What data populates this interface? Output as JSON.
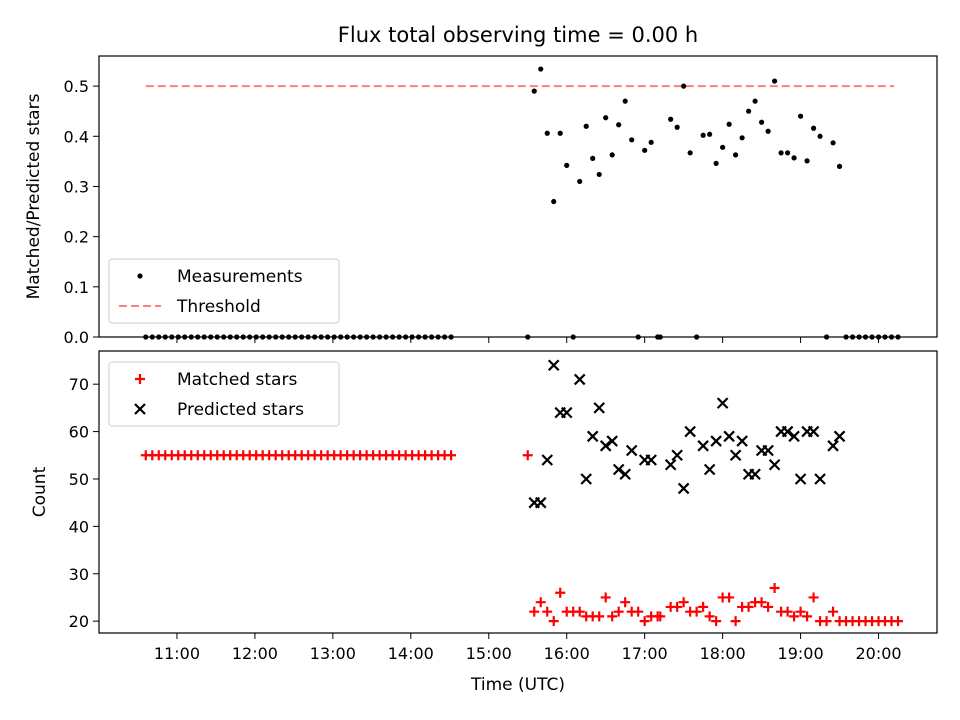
{
  "title": "Flux total observing time = 0.00 h",
  "xlabel": "Time (UTC)",
  "colors": {
    "measurement": "#000000",
    "threshold": "#ff7f7f",
    "matched": "#ff0000",
    "predicted": "#000000"
  },
  "chart_data": [
    {
      "type": "scatter",
      "ylabel": "Matched/Predicted stars",
      "ylim": [
        0,
        0.56
      ],
      "yticks": [
        "0.0",
        "0.1",
        "0.2",
        "0.3",
        "0.4",
        "0.5"
      ],
      "legend": {
        "position": "lower-left",
        "entries": [
          "Measurements",
          "Threshold"
        ]
      },
      "threshold": {
        "name": "Threshold",
        "value": 0.5,
        "x_start": "10:36",
        "x_end": "20:12"
      },
      "series": [
        {
          "name": "Measurements",
          "marker": "dot",
          "points": [
            [
              "10:36",
              0
            ],
            [
              "10:41",
              0
            ],
            [
              "10:46",
              0
            ],
            [
              "10:51",
              0
            ],
            [
              "10:56",
              0
            ],
            [
              "11:01",
              0
            ],
            [
              "11:06",
              0
            ],
            [
              "11:11",
              0
            ],
            [
              "11:16",
              0
            ],
            [
              "11:21",
              0
            ],
            [
              "11:26",
              0
            ],
            [
              "11:31",
              0
            ],
            [
              "11:36",
              0
            ],
            [
              "11:41",
              0
            ],
            [
              "11:46",
              0
            ],
            [
              "11:51",
              0
            ],
            [
              "11:56",
              0
            ],
            [
              "12:01",
              0
            ],
            [
              "12:06",
              0
            ],
            [
              "12:11",
              0
            ],
            [
              "12:16",
              0
            ],
            [
              "12:21",
              0
            ],
            [
              "12:26",
              0
            ],
            [
              "12:31",
              0
            ],
            [
              "12:36",
              0
            ],
            [
              "12:41",
              0
            ],
            [
              "12:46",
              0
            ],
            [
              "12:51",
              0
            ],
            [
              "12:56",
              0
            ],
            [
              "13:01",
              0
            ],
            [
              "13:06",
              0
            ],
            [
              "13:11",
              0
            ],
            [
              "13:16",
              0
            ],
            [
              "13:21",
              0
            ],
            [
              "13:26",
              0
            ],
            [
              "13:31",
              0
            ],
            [
              "13:36",
              0
            ],
            [
              "13:41",
              0
            ],
            [
              "13:46",
              0
            ],
            [
              "13:51",
              0
            ],
            [
              "13:56",
              0
            ],
            [
              "14:01",
              0
            ],
            [
              "14:06",
              0
            ],
            [
              "14:11",
              0
            ],
            [
              "14:16",
              0
            ],
            [
              "14:21",
              0
            ],
            [
              "14:26",
              0
            ],
            [
              "14:31",
              0
            ],
            [
              "15:30",
              0
            ],
            [
              "15:35",
              0.49
            ],
            [
              "15:40",
              0.534
            ],
            [
              "15:45",
              0.406
            ],
            [
              "15:50",
              0.27
            ],
            [
              "15:55",
              0.406
            ],
            [
              "16:00",
              0.342
            ],
            [
              "16:05",
              0
            ],
            [
              "16:10",
              0.31
            ],
            [
              "16:15",
              0.42
            ],
            [
              "16:20",
              0.356
            ],
            [
              "16:25",
              0.324
            ],
            [
              "16:30",
              0.437
            ],
            [
              "16:35",
              0.363
            ],
            [
              "16:40",
              0.423
            ],
            [
              "16:45",
              0.47
            ],
            [
              "16:50",
              0.393
            ],
            [
              "16:55",
              0
            ],
            [
              "17:00",
              0.372
            ],
            [
              "17:05",
              0.388
            ],
            [
              "17:10",
              0
            ],
            [
              "17:12",
              0
            ],
            [
              "17:20",
              0.434
            ],
            [
              "17:25",
              0.418
            ],
            [
              "17:30",
              0.5
            ],
            [
              "17:35",
              0.367
            ],
            [
              "17:40",
              0
            ],
            [
              "17:45",
              0.402
            ],
            [
              "17:50",
              0.404
            ],
            [
              "17:55",
              0.346
            ],
            [
              "18:00",
              0.378
            ],
            [
              "18:05",
              0.424
            ],
            [
              "18:10",
              0.363
            ],
            [
              "18:15",
              0.397
            ],
            [
              "18:20",
              0.45
            ],
            [
              "18:25",
              0.47
            ],
            [
              "18:30",
              0.428
            ],
            [
              "18:35",
              0.41
            ],
            [
              "18:40",
              0.51
            ],
            [
              "18:45",
              0.367
            ],
            [
              "18:50",
              0.367
            ],
            [
              "18:55",
              0.357
            ],
            [
              "19:00",
              0.44
            ],
            [
              "19:05",
              0.351
            ],
            [
              "19:10",
              0.416
            ],
            [
              "19:15",
              0.4
            ],
            [
              "19:20",
              0
            ],
            [
              "19:25",
              0.387
            ],
            [
              "19:30",
              0.34
            ],
            [
              "19:35",
              0
            ],
            [
              "19:40",
              0
            ],
            [
              "19:45",
              0
            ],
            [
              "19:50",
              0
            ],
            [
              "19:55",
              0
            ],
            [
              "20:00",
              0
            ],
            [
              "20:05",
              0
            ],
            [
              "20:10",
              0
            ],
            [
              "20:15",
              0
            ]
          ]
        }
      ]
    },
    {
      "type": "scatter",
      "ylabel": "Count",
      "ylim": [
        17.5,
        77
      ],
      "yticks": [
        "20",
        "30",
        "40",
        "50",
        "60",
        "70"
      ],
      "legend": {
        "position": "upper-left",
        "entries": [
          "Matched stars",
          "Predicted stars"
        ]
      },
      "series": [
        {
          "name": "Matched stars",
          "marker": "plus",
          "points": [
            [
              "10:36",
              55
            ],
            [
              "10:41",
              55
            ],
            [
              "10:46",
              55
            ],
            [
              "10:51",
              55
            ],
            [
              "10:56",
              55
            ],
            [
              "11:01",
              55
            ],
            [
              "11:06",
              55
            ],
            [
              "11:11",
              55
            ],
            [
              "11:16",
              55
            ],
            [
              "11:21",
              55
            ],
            [
              "11:26",
              55
            ],
            [
              "11:31",
              55
            ],
            [
              "11:36",
              55
            ],
            [
              "11:41",
              55
            ],
            [
              "11:46",
              55
            ],
            [
              "11:51",
              55
            ],
            [
              "11:56",
              55
            ],
            [
              "12:01",
              55
            ],
            [
              "12:06",
              55
            ],
            [
              "12:11",
              55
            ],
            [
              "12:16",
              55
            ],
            [
              "12:21",
              55
            ],
            [
              "12:26",
              55
            ],
            [
              "12:31",
              55
            ],
            [
              "12:36",
              55
            ],
            [
              "12:41",
              55
            ],
            [
              "12:46",
              55
            ],
            [
              "12:51",
              55
            ],
            [
              "12:56",
              55
            ],
            [
              "13:01",
              55
            ],
            [
              "13:06",
              55
            ],
            [
              "13:11",
              55
            ],
            [
              "13:16",
              55
            ],
            [
              "13:21",
              55
            ],
            [
              "13:26",
              55
            ],
            [
              "13:31",
              55
            ],
            [
              "13:36",
              55
            ],
            [
              "13:41",
              55
            ],
            [
              "13:46",
              55
            ],
            [
              "13:51",
              55
            ],
            [
              "13:56",
              55
            ],
            [
              "14:01",
              55
            ],
            [
              "14:06",
              55
            ],
            [
              "14:11",
              55
            ],
            [
              "14:16",
              55
            ],
            [
              "14:21",
              55
            ],
            [
              "14:26",
              55
            ],
            [
              "14:31",
              55
            ],
            [
              "15:30",
              55
            ],
            [
              "15:35",
              22
            ],
            [
              "15:40",
              24
            ],
            [
              "15:45",
              22
            ],
            [
              "15:50",
              20
            ],
            [
              "15:55",
              26
            ],
            [
              "16:00",
              22
            ],
            [
              "16:05",
              22
            ],
            [
              "16:10",
              22
            ],
            [
              "16:15",
              21
            ],
            [
              "16:20",
              21
            ],
            [
              "16:25",
              21
            ],
            [
              "16:30",
              25
            ],
            [
              "16:35",
              21
            ],
            [
              "16:40",
              22
            ],
            [
              "16:45",
              24
            ],
            [
              "16:50",
              22
            ],
            [
              "16:55",
              22
            ],
            [
              "17:00",
              20
            ],
            [
              "17:05",
              21
            ],
            [
              "17:10",
              21
            ],
            [
              "17:12",
              21
            ],
            [
              "17:20",
              23
            ],
            [
              "17:25",
              23
            ],
            [
              "17:30",
              24
            ],
            [
              "17:35",
              22
            ],
            [
              "17:40",
              22
            ],
            [
              "17:45",
              23
            ],
            [
              "17:50",
              21
            ],
            [
              "17:55",
              20
            ],
            [
              "18:00",
              25
            ],
            [
              "18:05",
              25
            ],
            [
              "18:10",
              20
            ],
            [
              "18:15",
              23
            ],
            [
              "18:20",
              23
            ],
            [
              "18:25",
              24
            ],
            [
              "18:30",
              24
            ],
            [
              "18:35",
              23
            ],
            [
              "18:40",
              27
            ],
            [
              "18:45",
              22
            ],
            [
              "18:50",
              22
            ],
            [
              "18:55",
              21
            ],
            [
              "19:00",
              22
            ],
            [
              "19:05",
              21
            ],
            [
              "19:10",
              25
            ],
            [
              "19:15",
              20
            ],
            [
              "19:20",
              20
            ],
            [
              "19:25",
              22
            ],
            [
              "19:30",
              20
            ],
            [
              "19:35",
              20
            ],
            [
              "19:40",
              20
            ],
            [
              "19:45",
              20
            ],
            [
              "19:50",
              20
            ],
            [
              "19:55",
              20
            ],
            [
              "20:00",
              20
            ],
            [
              "20:05",
              20
            ],
            [
              "20:10",
              20
            ],
            [
              "20:15",
              20
            ]
          ]
        },
        {
          "name": "Predicted stars",
          "marker": "x",
          "points": [
            [
              "15:35",
              45
            ],
            [
              "15:40",
              45
            ],
            [
              "15:45",
              54
            ],
            [
              "15:50",
              74
            ],
            [
              "15:55",
              64
            ],
            [
              "16:00",
              64
            ],
            [
              "16:10",
              71
            ],
            [
              "16:15",
              50
            ],
            [
              "16:20",
              59
            ],
            [
              "16:25",
              65
            ],
            [
              "16:30",
              57
            ],
            [
              "16:35",
              58
            ],
            [
              "16:40",
              52
            ],
            [
              "16:45",
              51
            ],
            [
              "16:50",
              56
            ],
            [
              "17:00",
              54
            ],
            [
              "17:05",
              54
            ],
            [
              "17:20",
              53
            ],
            [
              "17:25",
              55
            ],
            [
              "17:30",
              48
            ],
            [
              "17:35",
              60
            ],
            [
              "17:45",
              57
            ],
            [
              "17:50",
              52
            ],
            [
              "17:55",
              58
            ],
            [
              "18:00",
              66
            ],
            [
              "18:05",
              59
            ],
            [
              "18:10",
              55
            ],
            [
              "18:15",
              58
            ],
            [
              "18:20",
              51
            ],
            [
              "18:25",
              51
            ],
            [
              "18:30",
              56
            ],
            [
              "18:35",
              56
            ],
            [
              "18:40",
              53
            ],
            [
              "18:45",
              60
            ],
            [
              "18:50",
              60
            ],
            [
              "18:55",
              59
            ],
            [
              "19:00",
              50
            ],
            [
              "19:05",
              60
            ],
            [
              "19:10",
              60
            ],
            [
              "19:15",
              50
            ],
            [
              "19:25",
              57
            ],
            [
              "19:30",
              59
            ]
          ]
        }
      ]
    }
  ],
  "xaxis": {
    "range": [
      "10:00",
      "20:45"
    ],
    "ticks": [
      "11:00",
      "12:00",
      "13:00",
      "14:00",
      "15:00",
      "16:00",
      "17:00",
      "18:00",
      "19:00",
      "20:00"
    ],
    "tick_labels": [
      "11:00",
      "12:00",
      "13:00",
      "14:00",
      "15:00",
      "16:00",
      "17:00",
      "18:00",
      "19:00",
      "20:00"
    ]
  }
}
